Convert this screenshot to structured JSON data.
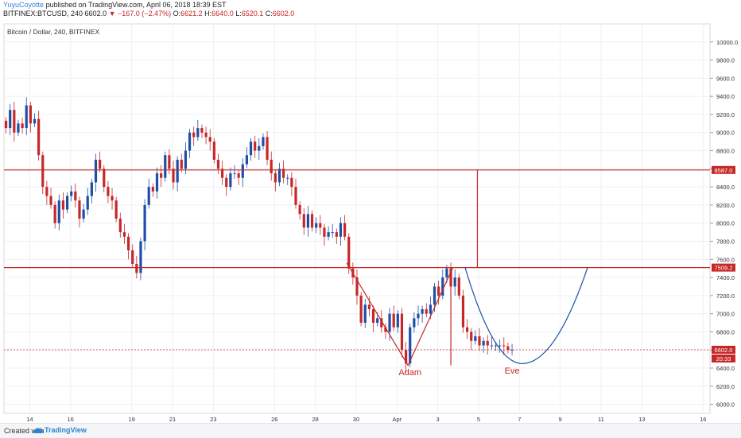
{
  "header": {
    "author": "YuyuCoyotte",
    "published": "published on TradingView.com, April 06, 2018 18:39 EST",
    "symbol": "BITFINEX:BTCUSD, 240",
    "last": "6602.0",
    "change": "−167.0 (−2.47%)",
    "o_label": "O:",
    "o": "6621.2",
    "h_label": "H:",
    "h": "6640.0",
    "l_label": "L:",
    "l": "6520.1",
    "c_label": "C:",
    "c": "6602.0"
  },
  "footer": {
    "created_with": "Created with",
    "brand": "TradingView",
    "brand_icon": "cloud-logo-icon"
  },
  "colors": {
    "up": "#1e4fa8",
    "down": "#c62828",
    "line": "#c62828",
    "curve": "#1e4fa8",
    "grid": "#eef0f3"
  },
  "chart_data": {
    "type": "candlestick",
    "title": "Bitcoin / Dollar, 240, BITFINEX",
    "ylim": [
      5900,
      10200
    ],
    "yticks": [
      "6000.0",
      "6200.0",
      "6400.0",
      "6600.0",
      "6800.0",
      "7000.0",
      "7200.0",
      "7400.0",
      "7600.0",
      "7800.0",
      "8000.0",
      "8200.0",
      "8400.0",
      "8600.0",
      "8800.0",
      "9000.0",
      "9200.0",
      "9400.0",
      "9600.0",
      "9800.0",
      "10000.0"
    ],
    "x_labels": [
      {
        "label": "14",
        "x": 6.3
      },
      {
        "label": "16",
        "x": 16.3
      },
      {
        "label": "19",
        "x": 31.3
      },
      {
        "label": "21",
        "x": 41.3
      },
      {
        "label": "23",
        "x": 51.3
      },
      {
        "label": "26",
        "x": 66.3
      },
      {
        "label": "28",
        "x": 76.3
      },
      {
        "label": "30",
        "x": 86.3
      },
      {
        "label": "Apr",
        "x": 96.3
      },
      {
        "label": "3",
        "x": 106.3
      },
      {
        "label": "5",
        "x": 116.3
      },
      {
        "label": "7",
        "x": 126.3
      },
      {
        "label": "9",
        "x": 136.3
      },
      {
        "label": "11",
        "x": 146.3
      },
      {
        "label": "13",
        "x": 156.3
      },
      {
        "label": "16",
        "x": 171.3
      }
    ],
    "x_range": [
      0,
      173
    ],
    "levels": [
      {
        "value": 8587.0,
        "label": "8587.0"
      },
      {
        "value": 7509.2,
        "label": "7509.2"
      }
    ],
    "last_price": {
      "value": 6602.0,
      "label": "6602.0",
      "timer": "20:33"
    },
    "annotations": [
      {
        "text": "Adam",
        "x": 99.5,
        "y": 6320
      },
      {
        "text": "Eve",
        "x": 124.5,
        "y": 6340
      }
    ],
    "adam_pattern": [
      [
        84,
        7560
      ],
      [
        99,
        6430
      ],
      [
        110,
        7509
      ]
    ],
    "measure_vertical": {
      "x": 116,
      "from": 7509.2,
      "to": 8587.0
    },
    "adam_bottom_line": {
      "x": 109.5,
      "from": 7509.2,
      "to": 6430
    },
    "eve_curve": {
      "x0": 113,
      "x1": 143,
      "top": 7509.2,
      "bottom": 6450,
      "vertex_x": 127
    },
    "closes": [
      9050,
      9250,
      9000,
      9100,
      9050,
      9300,
      9100,
      9150,
      8750,
      8400,
      8300,
      8200,
      8000,
      8250,
      8150,
      8300,
      8350,
      8250,
      8050,
      8150,
      8300,
      8450,
      8700,
      8600,
      8400,
      8300,
      8250,
      8050,
      7900,
      7850,
      7700,
      7550,
      7450,
      7800,
      8200,
      8400,
      8350,
      8550,
      8500,
      8750,
      8600,
      8450,
      8700,
      8600,
      8800,
      9000,
      8950,
      9050,
      9000,
      8950,
      8900,
      8700,
      8600,
      8500,
      8400,
      8550,
      8550,
      8500,
      8650,
      8750,
      8900,
      8800,
      8850,
      8950,
      8700,
      8550,
      8450,
      8600,
      8500,
      8500,
      8400,
      8200,
      8100,
      7950,
      8100,
      7950,
      8000,
      7950,
      7850,
      7900,
      7900,
      7850,
      8000,
      7850,
      7500,
      7400,
      7200,
      6900,
      7100,
      7050,
      6900,
      6950,
      6850,
      6800,
      7000,
      6850,
      7000,
      6600,
      6450,
      6850,
      6950,
      7000,
      7050,
      7000,
      7100,
      7300,
      7200,
      7400,
      7500,
      7300,
      7400,
      7200,
      6850,
      6800,
      6700,
      6750,
      6650,
      6700,
      6650,
      6650,
      6650,
      6650,
      6640,
      6600,
      6602
    ]
  }
}
